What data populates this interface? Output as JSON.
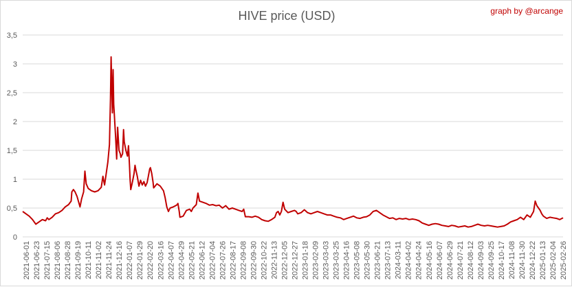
{
  "header": {
    "credit": "graph by @arcange"
  },
  "chart_data": {
    "type": "line",
    "title": "HIVE price (USD)",
    "xlabel": "",
    "ylabel": "",
    "ylim": [
      0,
      3.5
    ],
    "y_ticks": [
      "0",
      "0,5",
      "1",
      "1,5",
      "2",
      "2,5",
      "3",
      "3,5"
    ],
    "x_tick_labels": [
      "2021-06-01",
      "2021-06-23",
      "2021-07-15",
      "2021-08-06",
      "2021-08-28",
      "2021-09-19",
      "2021-10-11",
      "2021-11-02",
      "2021-11-24",
      "2021-12-16",
      "2022-01-07",
      "2022-01-29",
      "2022-02-20",
      "2022-03-16",
      "2022-04-07",
      "2022-04-29",
      "2022-05-21",
      "2022-06-12",
      "2022-07-04",
      "2022-07-26",
      "2022-08-17",
      "2022-09-08",
      "2022-09-30",
      "2022-10-22",
      "2022-11-13",
      "2022-12-05",
      "2022-12-27",
      "2023-01-18",
      "2023-02-09",
      "2023-03-03",
      "2023-03-25",
      "2023-04-16",
      "2023-05-08",
      "2023-05-30",
      "2023-06-21",
      "2023-07-13",
      "2024-03-11",
      "2024-04-02",
      "2024-04-24",
      "2024-05-16",
      "2024-06-07",
      "2024-06-29",
      "2024-07-21",
      "2024-08-12",
      "2024-09-03",
      "2024-09-25",
      "2024-10-17",
      "2024-11-08",
      "2024-11-30",
      "2024-12-22",
      "2025-01-13",
      "2025-02-04",
      "2025-02-26"
    ],
    "grid": true,
    "legend": "none",
    "series": [
      {
        "color": "#c00000",
        "points": [
          [
            0,
            0.44
          ],
          [
            1,
            0.4
          ],
          [
            2,
            0.36
          ],
          [
            3,
            0.3
          ],
          [
            4,
            0.22
          ],
          [
            5,
            0.26
          ],
          [
            6,
            0.3
          ],
          [
            7,
            0.28
          ],
          [
            7.5,
            0.33
          ],
          [
            8,
            0.3
          ],
          [
            9,
            0.34
          ],
          [
            10,
            0.4
          ],
          [
            11,
            0.42
          ],
          [
            12,
            0.46
          ],
          [
            13,
            0.52
          ],
          [
            14,
            0.56
          ],
          [
            14.8,
            0.62
          ],
          [
            15,
            0.78
          ],
          [
            15.5,
            0.82
          ],
          [
            16,
            0.78
          ],
          [
            16.6,
            0.7
          ],
          [
            17,
            0.62
          ],
          [
            17.5,
            0.52
          ],
          [
            18,
            0.66
          ],
          [
            18.6,
            0.78
          ],
          [
            19,
            1.14
          ],
          [
            19.4,
            0.92
          ],
          [
            20,
            0.84
          ],
          [
            21,
            0.8
          ],
          [
            22,
            0.78
          ],
          [
            23,
            0.8
          ],
          [
            24,
            0.86
          ],
          [
            24.5,
            1.05
          ],
          [
            25,
            0.9
          ],
          [
            25.5,
            1.1
          ],
          [
            26,
            1.3
          ],
          [
            26.5,
            1.6
          ],
          [
            26.8,
            2.4
          ],
          [
            27,
            3.12
          ],
          [
            27.2,
            2.6
          ],
          [
            27.4,
            2.15
          ],
          [
            27.6,
            2.9
          ],
          [
            27.8,
            2.3
          ],
          [
            28,
            2.1
          ],
          [
            28.4,
            1.7
          ],
          [
            28.7,
            1.35
          ],
          [
            29,
            1.9
          ],
          [
            29.4,
            1.5
          ],
          [
            29.8,
            1.44
          ],
          [
            30,
            1.38
          ],
          [
            30.5,
            1.44
          ],
          [
            30.8,
            1.86
          ],
          [
            31,
            1.65
          ],
          [
            31.5,
            1.5
          ],
          [
            32,
            1.4
          ],
          [
            32.3,
            1.58
          ],
          [
            32.6,
            1.25
          ],
          [
            32.8,
            1.0
          ],
          [
            33,
            0.82
          ],
          [
            33.5,
            0.95
          ],
          [
            34,
            1.1
          ],
          [
            34.3,
            1.24
          ],
          [
            34.6,
            1.15
          ],
          [
            35,
            1.05
          ],
          [
            35.5,
            0.88
          ],
          [
            36,
            0.98
          ],
          [
            36.5,
            0.9
          ],
          [
            37,
            0.96
          ],
          [
            37.5,
            0.88
          ],
          [
            38,
            0.94
          ],
          [
            38.4,
            1.06
          ],
          [
            38.8,
            1.18
          ],
          [
            39,
            1.2
          ],
          [
            39.4,
            1.1
          ],
          [
            39.8,
            0.95
          ],
          [
            40,
            0.85
          ],
          [
            41,
            0.92
          ],
          [
            42,
            0.88
          ],
          [
            43,
            0.8
          ],
          [
            43.5,
            0.68
          ],
          [
            44,
            0.52
          ],
          [
            44.5,
            0.44
          ],
          [
            45,
            0.5
          ],
          [
            46,
            0.52
          ],
          [
            47,
            0.55
          ],
          [
            47.4,
            0.58
          ],
          [
            47.8,
            0.44
          ],
          [
            48,
            0.34
          ],
          [
            49,
            0.36
          ],
          [
            50,
            0.46
          ],
          [
            51,
            0.48
          ],
          [
            51.5,
            0.44
          ],
          [
            52,
            0.5
          ],
          [
            53,
            0.56
          ],
          [
            53.5,
            0.76
          ],
          [
            54,
            0.62
          ],
          [
            55,
            0.6
          ],
          [
            56,
            0.58
          ],
          [
            57,
            0.55
          ],
          [
            58,
            0.56
          ],
          [
            59,
            0.54
          ],
          [
            60,
            0.55
          ],
          [
            61,
            0.5
          ],
          [
            62,
            0.54
          ],
          [
            63,
            0.48
          ],
          [
            64,
            0.5
          ],
          [
            65,
            0.48
          ],
          [
            66,
            0.46
          ],
          [
            67,
            0.44
          ],
          [
            67.5,
            0.48
          ],
          [
            68,
            0.35
          ],
          [
            69,
            0.35
          ],
          [
            70,
            0.34
          ],
          [
            71,
            0.36
          ],
          [
            72,
            0.34
          ],
          [
            73,
            0.3
          ],
          [
            74,
            0.28
          ],
          [
            75,
            0.27
          ],
          [
            76,
            0.3
          ],
          [
            77,
            0.34
          ],
          [
            77.5,
            0.42
          ],
          [
            78,
            0.44
          ],
          [
            78.5,
            0.38
          ],
          [
            79,
            0.44
          ],
          [
            79.5,
            0.6
          ],
          [
            80,
            0.48
          ],
          [
            81,
            0.42
          ],
          [
            82,
            0.44
          ],
          [
            83,
            0.46
          ],
          [
            83.5,
            0.44
          ],
          [
            84,
            0.4
          ],
          [
            85,
            0.42
          ],
          [
            86,
            0.47
          ],
          [
            87,
            0.42
          ],
          [
            88,
            0.4
          ],
          [
            89,
            0.42
          ],
          [
            90,
            0.44
          ],
          [
            91,
            0.42
          ],
          [
            92,
            0.4
          ],
          [
            93,
            0.38
          ],
          [
            94,
            0.38
          ],
          [
            95,
            0.36
          ],
          [
            96,
            0.34
          ],
          [
            97,
            0.33
          ],
          [
            98,
            0.3
          ],
          [
            99,
            0.32
          ],
          [
            100,
            0.34
          ],
          [
            101,
            0.36
          ],
          [
            102,
            0.33
          ],
          [
            103,
            0.32
          ],
          [
            104,
            0.34
          ],
          [
            105,
            0.35
          ],
          [
            106,
            0.38
          ],
          [
            107,
            0.44
          ],
          [
            108,
            0.46
          ],
          [
            109,
            0.42
          ],
          [
            110,
            0.38
          ],
          [
            111,
            0.35
          ],
          [
            112,
            0.32
          ],
          [
            113,
            0.33
          ],
          [
            114,
            0.3
          ],
          [
            115,
            0.32
          ],
          [
            116,
            0.31
          ],
          [
            117,
            0.32
          ],
          [
            118,
            0.3
          ],
          [
            119,
            0.31
          ],
          [
            120,
            0.3
          ],
          [
            121,
            0.28
          ],
          [
            122,
            0.24
          ],
          [
            123,
            0.22
          ],
          [
            124,
            0.2
          ],
          [
            125,
            0.22
          ],
          [
            126,
            0.23
          ],
          [
            127,
            0.22
          ],
          [
            128,
            0.2
          ],
          [
            129,
            0.19
          ],
          [
            130,
            0.18
          ],
          [
            131,
            0.2
          ],
          [
            132,
            0.19
          ],
          [
            133,
            0.17
          ],
          [
            134,
            0.18
          ],
          [
            135,
            0.19
          ],
          [
            136,
            0.17
          ],
          [
            137,
            0.18
          ],
          [
            138,
            0.2
          ],
          [
            139,
            0.22
          ],
          [
            140,
            0.2
          ],
          [
            141,
            0.19
          ],
          [
            142,
            0.2
          ],
          [
            143,
            0.19
          ],
          [
            144,
            0.18
          ],
          [
            145,
            0.17
          ],
          [
            146,
            0.18
          ],
          [
            147,
            0.19
          ],
          [
            148,
            0.22
          ],
          [
            149,
            0.26
          ],
          [
            150,
            0.28
          ],
          [
            151,
            0.3
          ],
          [
            152,
            0.34
          ],
          [
            153,
            0.3
          ],
          [
            154,
            0.38
          ],
          [
            155,
            0.34
          ],
          [
            156,
            0.44
          ],
          [
            156.5,
            0.62
          ],
          [
            157,
            0.54
          ],
          [
            157.5,
            0.5
          ],
          [
            158,
            0.46
          ],
          [
            158.5,
            0.4
          ],
          [
            159,
            0.36
          ],
          [
            160,
            0.32
          ],
          [
            161,
            0.34
          ],
          [
            162,
            0.33
          ],
          [
            163,
            0.32
          ],
          [
            164,
            0.3
          ],
          [
            165,
            0.33
          ]
        ]
      }
    ]
  }
}
